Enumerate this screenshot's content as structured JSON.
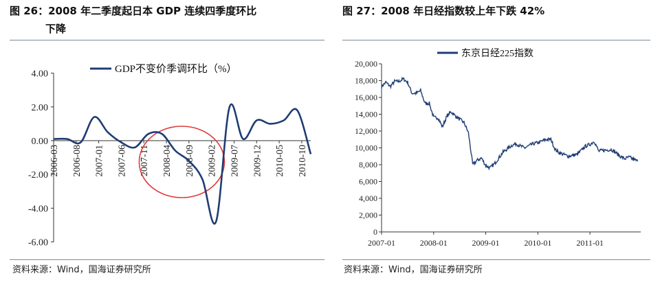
{
  "figures": {
    "left": {
      "title_line1": "图 26：2008 年二季度起日本 GDP 连续四季度环比",
      "title_line2": "下降",
      "source": "资料来源：Wind，国海证券研究所"
    },
    "right": {
      "title": "图 27：2008 年日经指数较上年下跌 42%",
      "source": "资料来源：Wind，国海证券研究所"
    }
  },
  "colors": {
    "series": "#1f3c73",
    "highlight_circle": "#e03a3a",
    "rule": "#7a8a99"
  },
  "chart_data": [
    {
      "type": "line",
      "title": "",
      "xlabel": "",
      "ylabel": "",
      "legend": {
        "position": "top",
        "entries": [
          "GDP不变价季调环比（%）"
        ]
      },
      "ylim": [
        -6,
        4
      ],
      "yticks": [
        4,
        2,
        0,
        -2,
        -4,
        -6
      ],
      "ytick_labels": [
        "4.00",
        "2.00",
        "0.00",
        "-2.00",
        "-4.00",
        "-6.00"
      ],
      "xtick_labels": [
        "2006-03",
        "2006-08",
        "2007-01",
        "2007-06",
        "2007-11",
        "2008-04",
        "2008-09",
        "2009-02",
        "2009-07",
        "2009-12",
        "2010-05",
        "2010-10"
      ],
      "annotation": "red ellipse around 2007-11 to 2009-02",
      "series": [
        {
          "name": "GDP不变价季调环比（%）",
          "x": [
            "2006-03",
            "2006-06",
            "2006-09",
            "2006-12",
            "2007-03",
            "2007-06",
            "2007-09",
            "2007-12",
            "2008-03",
            "2008-06",
            "2008-09",
            "2008-12",
            "2009-03",
            "2009-06",
            "2009-09",
            "2009-12",
            "2010-03",
            "2010-06",
            "2010-09",
            "2010-12"
          ],
          "values": [
            0.1,
            0.1,
            -0.1,
            1.4,
            0.5,
            -0.1,
            -0.4,
            0.4,
            0.4,
            -0.6,
            -1.2,
            -2.3,
            -4.8,
            2.0,
            0.1,
            1.2,
            1.0,
            1.2,
            1.8,
            -0.8
          ]
        }
      ]
    },
    {
      "type": "line",
      "title": "",
      "xlabel": "",
      "ylabel": "",
      "legend": {
        "position": "top",
        "entries": [
          "东京日经225指数"
        ]
      },
      "ylim": [
        0,
        20000
      ],
      "yticks": [
        0,
        2000,
        4000,
        6000,
        8000,
        10000,
        12000,
        14000,
        16000,
        18000,
        20000
      ],
      "ytick_labels": [
        "0",
        "2,000",
        "4,000",
        "6,000",
        "8,000",
        "10,000",
        "12,000",
        "14,000",
        "16,000",
        "18,000",
        "20,000"
      ],
      "xtick_labels": [
        "2007-01",
        "2008-01",
        "2009-01",
        "2010-01",
        "2011-01"
      ],
      "series": [
        {
          "name": "东京日经225指数",
          "x": [
            "2007-01",
            "2007-02",
            "2007-03",
            "2007-04",
            "2007-05",
            "2007-06",
            "2007-07",
            "2007-08",
            "2007-09",
            "2007-10",
            "2007-11",
            "2007-12",
            "2008-01",
            "2008-02",
            "2008-03",
            "2008-04",
            "2008-05",
            "2008-06",
            "2008-07",
            "2008-08",
            "2008-09",
            "2008-10",
            "2008-11",
            "2008-12",
            "2009-01",
            "2009-02",
            "2009-03",
            "2009-04",
            "2009-05",
            "2009-06",
            "2009-07",
            "2009-08",
            "2009-09",
            "2009-10",
            "2009-12",
            "2010-01",
            "2010-03",
            "2010-04",
            "2010-05",
            "2010-06",
            "2010-08",
            "2010-10",
            "2010-12",
            "2011-01",
            "2011-02",
            "2011-03",
            "2011-04",
            "2011-06",
            "2011-08",
            "2011-09",
            "2011-10",
            "2011-12"
          ],
          "values": [
            17300,
            17800,
            17300,
            17900,
            17900,
            18200,
            17800,
            16500,
            16500,
            16800,
            15300,
            15300,
            13600,
            13600,
            12500,
            13700,
            14300,
            13800,
            13400,
            13000,
            11800,
            8000,
            8500,
            8800,
            7900,
            7600,
            8100,
            8800,
            9500,
            9900,
            10300,
            10500,
            10200,
            10000,
            10500,
            10600,
            11000,
            11000,
            9800,
            9400,
            9000,
            9200,
            10200,
            10400,
            10800,
            9600,
            9700,
            9800,
            9000,
            8700,
            8900,
            8400
          ]
        }
      ]
    }
  ]
}
